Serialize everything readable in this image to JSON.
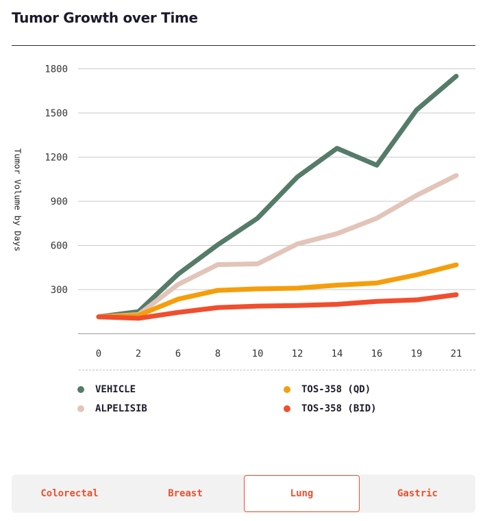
{
  "title": "Tumor Growth over Time",
  "chart_data": {
    "type": "line",
    "title": "Tumor Growth over Time",
    "xlabel": "",
    "ylabel": "Tumor Volume by Days",
    "categories": [
      "0",
      "2",
      "6",
      "8",
      "10",
      "12",
      "14",
      "16",
      "19",
      "21"
    ],
    "yticks": [
      300,
      600,
      900,
      1200,
      1500,
      1800
    ],
    "ylim": [
      0,
      1800
    ],
    "grid": true,
    "legend_position": "bottom",
    "series": [
      {
        "name": "VEHICLE",
        "color": "#557b69",
        "values": [
          115,
          150,
          405,
          605,
          785,
          1065,
          1260,
          1145,
          1520,
          1750
        ]
      },
      {
        "name": "ALPELISIB",
        "color": "#e2c4b9",
        "values": [
          115,
          130,
          335,
          470,
          475,
          610,
          680,
          785,
          940,
          1075
        ]
      },
      {
        "name": "TOS-358 (QD)",
        "color": "#f59e0b",
        "values": [
          115,
          125,
          235,
          295,
          305,
          310,
          330,
          345,
          400,
          468
        ]
      },
      {
        "name": "TOS-358 (BID)",
        "color": "#f04e2d",
        "values": [
          115,
          105,
          145,
          178,
          188,
          192,
          200,
          220,
          230,
          265
        ]
      }
    ]
  },
  "tabs": [
    {
      "label": "Colorectal",
      "active": false
    },
    {
      "label": "Breast",
      "active": false
    },
    {
      "label": "Lung",
      "active": true
    },
    {
      "label": "Gastric",
      "active": false
    }
  ]
}
